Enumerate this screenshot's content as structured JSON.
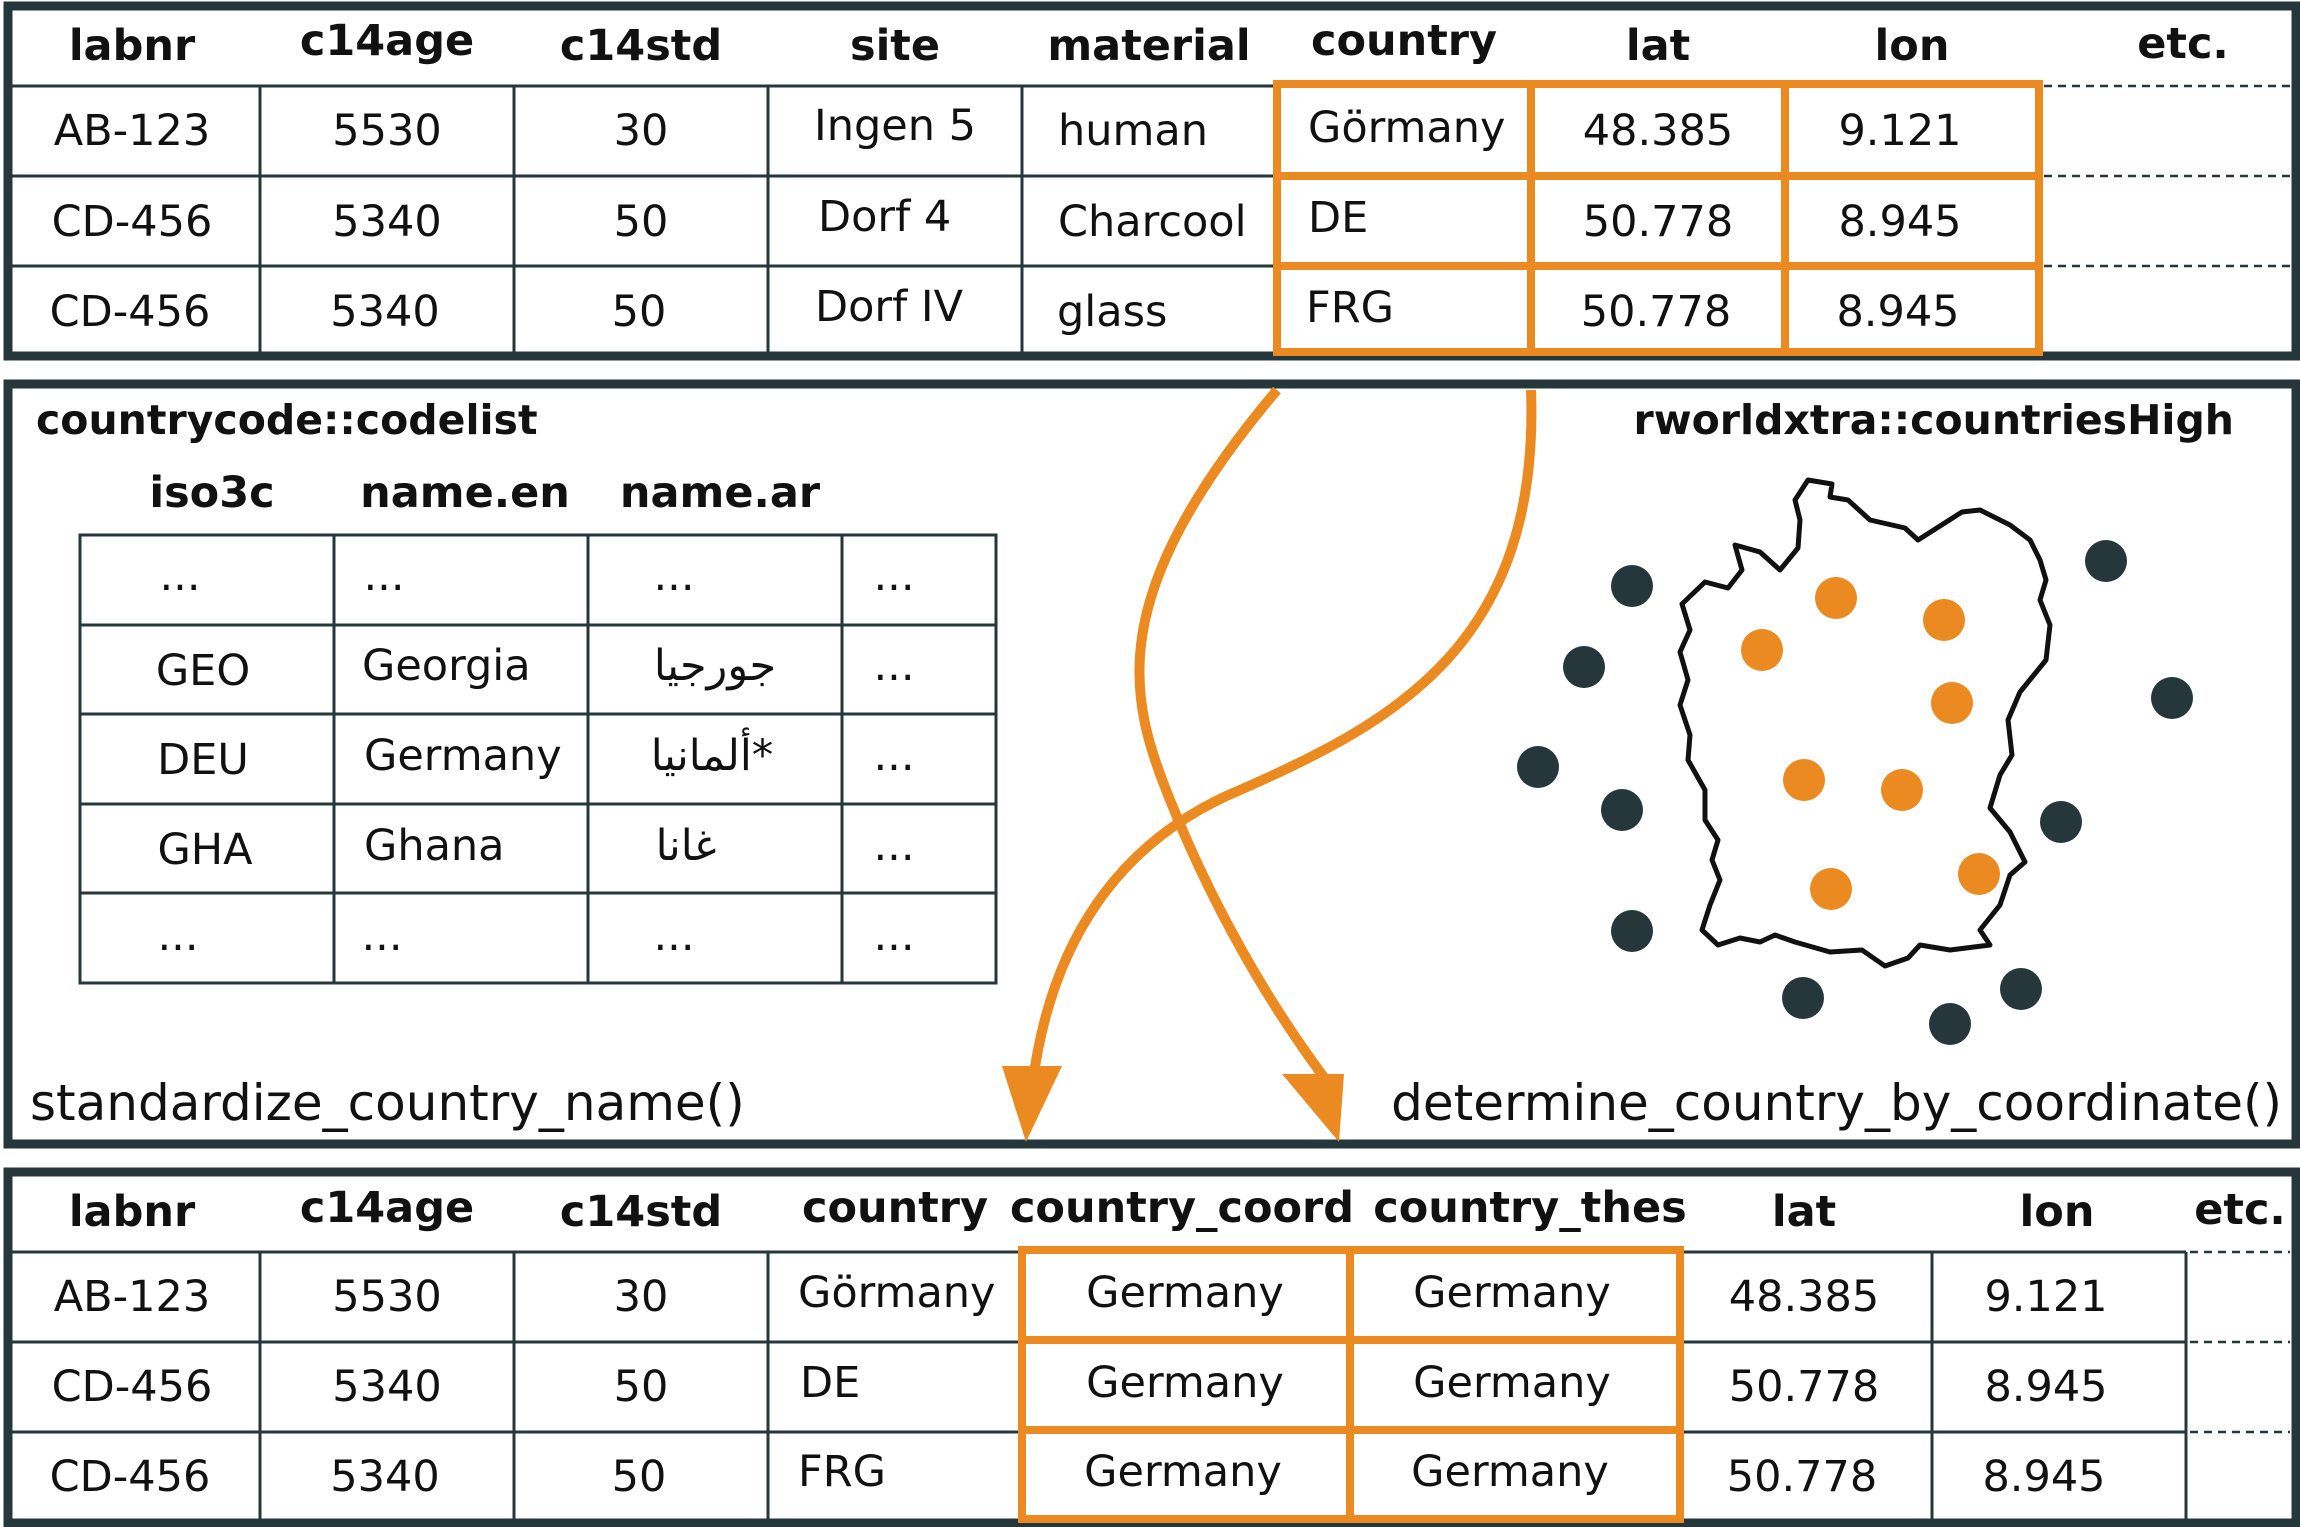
{
  "colors": {
    "frame": "#25373b",
    "accent": "#ea8a21",
    "inside_points": "#ea8a21",
    "outside_points": "#25373b",
    "text": "#111111"
  },
  "input_table": {
    "headers": [
      "labnr",
      "c14age",
      "c14std",
      "site",
      "material",
      "country",
      "lat",
      "lon",
      "etc."
    ],
    "rows": [
      [
        "AB-123",
        "5530",
        "30",
        "Ingen 5",
        "human",
        "Görmany",
        "48.385",
        "9.121"
      ],
      [
        "CD-456",
        "5340",
        "50",
        "Dorf 4",
        "Charcool",
        "DE",
        "50.778",
        "8.945"
      ],
      [
        "CD-456",
        "5340",
        "50",
        "Dorf IV",
        "glass",
        "FRG",
        "50.778",
        "8.945"
      ]
    ]
  },
  "middle": {
    "codelist_title": "countrycode::codelist",
    "codelist_headers": [
      "iso3c",
      "name.en",
      "name.ar"
    ],
    "codelist_rows": [
      [
        "...",
        "...",
        "...",
        "..."
      ],
      [
        "GEO",
        "Georgia",
        "جورجيا",
        "..."
      ],
      [
        "DEU",
        "Germany",
        "ألمانيا*",
        "..."
      ],
      [
        "GHA",
        "Ghana",
        "غانا",
        "..."
      ],
      [
        "...",
        "...",
        "...",
        "..."
      ]
    ],
    "map_title": "rworldxtra::countriesHigh",
    "map_icon": "germany-outline-with-points",
    "func_left": "standardize_country_name()",
    "func_right": "determine_country_by_coordinate()"
  },
  "output_table": {
    "headers": [
      "labnr",
      "c14age",
      "c14std",
      "country",
      "country_coord",
      "country_thes",
      "lat",
      "lon",
      "etc."
    ],
    "rows": [
      [
        "AB-123",
        "5530",
        "30",
        "Görmany",
        "Germany",
        "Germany",
        "48.385",
        "9.121"
      ],
      [
        "CD-456",
        "5340",
        "50",
        "DE",
        "Germany",
        "Germany",
        "50.778",
        "8.945"
      ],
      [
        "CD-456",
        "5340",
        "50",
        "FRG",
        "Germany",
        "Germany",
        "50.778",
        "8.945"
      ]
    ]
  }
}
